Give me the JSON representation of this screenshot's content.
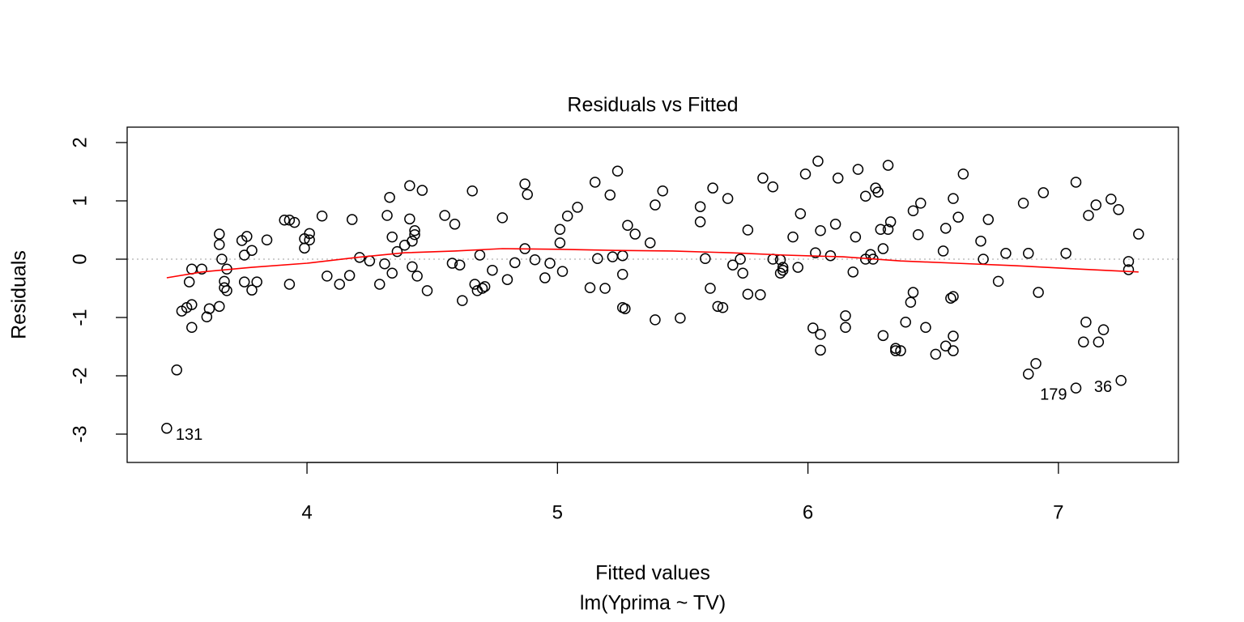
{
  "chart_data": {
    "type": "scatter",
    "title": "Residuals vs Fitted",
    "xlabel": "Fitted values",
    "subtitle": "lm(Yprima ~ TV)",
    "ylabel": "Residuals",
    "xlim": [
      3.282,
      7.479
    ],
    "ylim": [
      -3.486,
      2.264
    ],
    "xticks": [
      4,
      5,
      6,
      7
    ],
    "yticks": [
      -3,
      -2,
      -1,
      0,
      1,
      2
    ],
    "reference_line": 0,
    "x": [
      3.48,
      3.5,
      3.52,
      3.54,
      3.53,
      3.54,
      3.54,
      3.58,
      3.6,
      3.61,
      3.65,
      3.65,
      3.65,
      3.66,
      3.67,
      3.67,
      3.68,
      3.68,
      3.74,
      3.76,
      3.75,
      3.78,
      3.75,
      3.78,
      3.8,
      3.84,
      3.91,
      3.93,
      3.95,
      3.93,
      3.99,
      3.99,
      4.01,
      4.01,
      4.06,
      4.08,
      4.13,
      4.17,
      4.18,
      4.21,
      4.25,
      4.29,
      4.31,
      4.32,
      4.33,
      4.34,
      4.34,
      4.36,
      4.39,
      4.41,
      4.41,
      4.42,
      4.42,
      4.43,
      4.43,
      4.44,
      4.46,
      4.48,
      4.55,
      4.58,
      4.59,
      4.61,
      4.62,
      4.66,
      4.67,
      4.69,
      4.68,
      4.7,
      4.71,
      4.74,
      4.78,
      4.8,
      4.83,
      4.87,
      4.88,
      4.87,
      4.91,
      4.95,
      4.97,
      5.01,
      5.01,
      5.02,
      5.04,
      5.08,
      5.13,
      5.15,
      5.16,
      5.19,
      5.21,
      5.22,
      5.24,
      5.26,
      5.26,
      5.26,
      5.27,
      5.28,
      5.31,
      5.37,
      5.39,
      5.39,
      5.42,
      5.49,
      5.57,
      5.57,
      5.59,
      5.61,
      5.62,
      5.64,
      5.66,
      5.68,
      5.7,
      5.73,
      5.74,
      5.76,
      5.76,
      5.81,
      5.82,
      5.86,
      5.86,
      5.89,
      5.89,
      5.9,
      5.9,
      5.94,
      5.96,
      5.97,
      5.99,
      6.03,
      6.02,
      6.04,
      6.05,
      6.05,
      6.05,
      6.09,
      6.11,
      6.12,
      6.15,
      6.15,
      6.18,
      6.19,
      6.2,
      6.23,
      6.23,
      6.25,
      6.26,
      6.27,
      6.28,
      6.29,
      6.3,
      6.3,
      6.32,
      6.32,
      6.33,
      6.35,
      6.35,
      6.37,
      6.39,
      6.41,
      6.42,
      6.42,
      6.44,
      6.45,
      6.47,
      6.51,
      6.54,
      6.55,
      6.55,
      6.57,
      6.58,
      6.58,
      6.58,
      6.58,
      6.6,
      6.62,
      6.69,
      6.7,
      6.72,
      6.76,
      6.79,
      6.86,
      6.88,
      6.88,
      6.91,
      6.92,
      6.94,
      7.03,
      7.07,
      7.11,
      7.1,
      7.12,
      7.15,
      7.16,
      7.18,
      7.21,
      7.24,
      7.28,
      7.28,
      7.32
    ],
    "y": [
      -1.9,
      -0.89,
      -0.83,
      -0.78,
      -0.39,
      -1.17,
      -0.17,
      -0.17,
      -0.99,
      -0.85,
      0.43,
      0.25,
      -0.81,
      0.0,
      -0.38,
      -0.49,
      -0.54,
      -0.17,
      0.32,
      0.39,
      0.07,
      0.15,
      -0.39,
      -0.53,
      -0.39,
      0.33,
      0.67,
      0.67,
      0.63,
      -0.43,
      0.19,
      0.35,
      0.44,
      0.33,
      0.74,
      -0.29,
      -0.43,
      -0.28,
      0.68,
      0.03,
      -0.03,
      -0.43,
      -0.08,
      0.75,
      1.06,
      0.38,
      -0.24,
      0.13,
      0.24,
      1.26,
      0.69,
      0.31,
      -0.13,
      0.49,
      0.42,
      -0.29,
      1.18,
      -0.54,
      0.75,
      -0.07,
      0.6,
      -0.1,
      -0.71,
      1.17,
      -0.43,
      0.07,
      -0.54,
      -0.5,
      -0.47,
      -0.19,
      0.71,
      -0.35,
      -0.06,
      1.29,
      1.11,
      0.18,
      -0.01,
      -0.32,
      -0.07,
      0.28,
      0.51,
      -0.21,
      0.74,
      0.89,
      -0.49,
      1.32,
      0.01,
      -0.5,
      1.1,
      0.04,
      1.51,
      -0.26,
      0.06,
      -0.83,
      -0.85,
      0.58,
      0.43,
      0.28,
      0.93,
      -1.04,
      1.17,
      -1.01,
      0.64,
      0.9,
      0.01,
      -0.5,
      1.22,
      -0.81,
      -0.83,
      1.04,
      -0.1,
      0.0,
      -0.24,
      0.5,
      -0.6,
      -0.61,
      1.39,
      1.24,
      0.0,
      -0.01,
      -0.24,
      -0.14,
      -0.19,
      0.38,
      -0.14,
      0.78,
      1.46,
      0.11,
      -1.18,
      1.68,
      0.49,
      -1.29,
      -1.56,
      0.06,
      0.6,
      1.39,
      -0.97,
      -1.17,
      -0.22,
      0.38,
      1.54,
      0.0,
      1.08,
      0.08,
      0.0,
      1.22,
      1.15,
      0.51,
      -1.31,
      0.18,
      1.61,
      0.51,
      0.64,
      -1.53,
      -1.57,
      -1.57,
      -1.08,
      -0.74,
      0.83,
      -0.57,
      0.42,
      0.96,
      -1.17,
      -1.63,
      0.14,
      -1.49,
      0.53,
      -0.67,
      1.04,
      -0.64,
      -1.32,
      -1.57,
      0.72,
      1.46,
      0.31,
      0.0,
      0.68,
      -0.38,
      0.1,
      0.96,
      0.1,
      -1.97,
      -1.79,
      -0.57,
      1.14,
      0.1,
      1.32,
      -1.08,
      -1.42,
      0.75,
      0.93,
      -1.42,
      -1.21,
      1.03,
      0.85,
      -0.04,
      -0.18,
      0.43
    ],
    "labeled_points": [
      {
        "label": "131",
        "x": 3.44,
        "y": -2.9
      },
      {
        "label": "179",
        "x": 7.07,
        "y": -2.21
      },
      {
        "label": "36",
        "x": 7.25,
        "y": -2.08
      }
    ],
    "smooth": {
      "color": "#ff0000",
      "x": [
        3.44,
        3.58,
        3.78,
        4.0,
        4.2,
        4.39,
        4.59,
        4.78,
        5.01,
        5.23,
        5.46,
        5.69,
        5.91,
        6.14,
        6.37,
        6.59,
        6.82,
        7.08,
        7.32
      ],
      "y": [
        -0.32,
        -0.22,
        -0.14,
        -0.07,
        0.03,
        0.11,
        0.14,
        0.18,
        0.17,
        0.15,
        0.14,
        0.11,
        0.07,
        0.04,
        -0.03,
        -0.07,
        -0.11,
        -0.17,
        -0.22
      ]
    }
  }
}
